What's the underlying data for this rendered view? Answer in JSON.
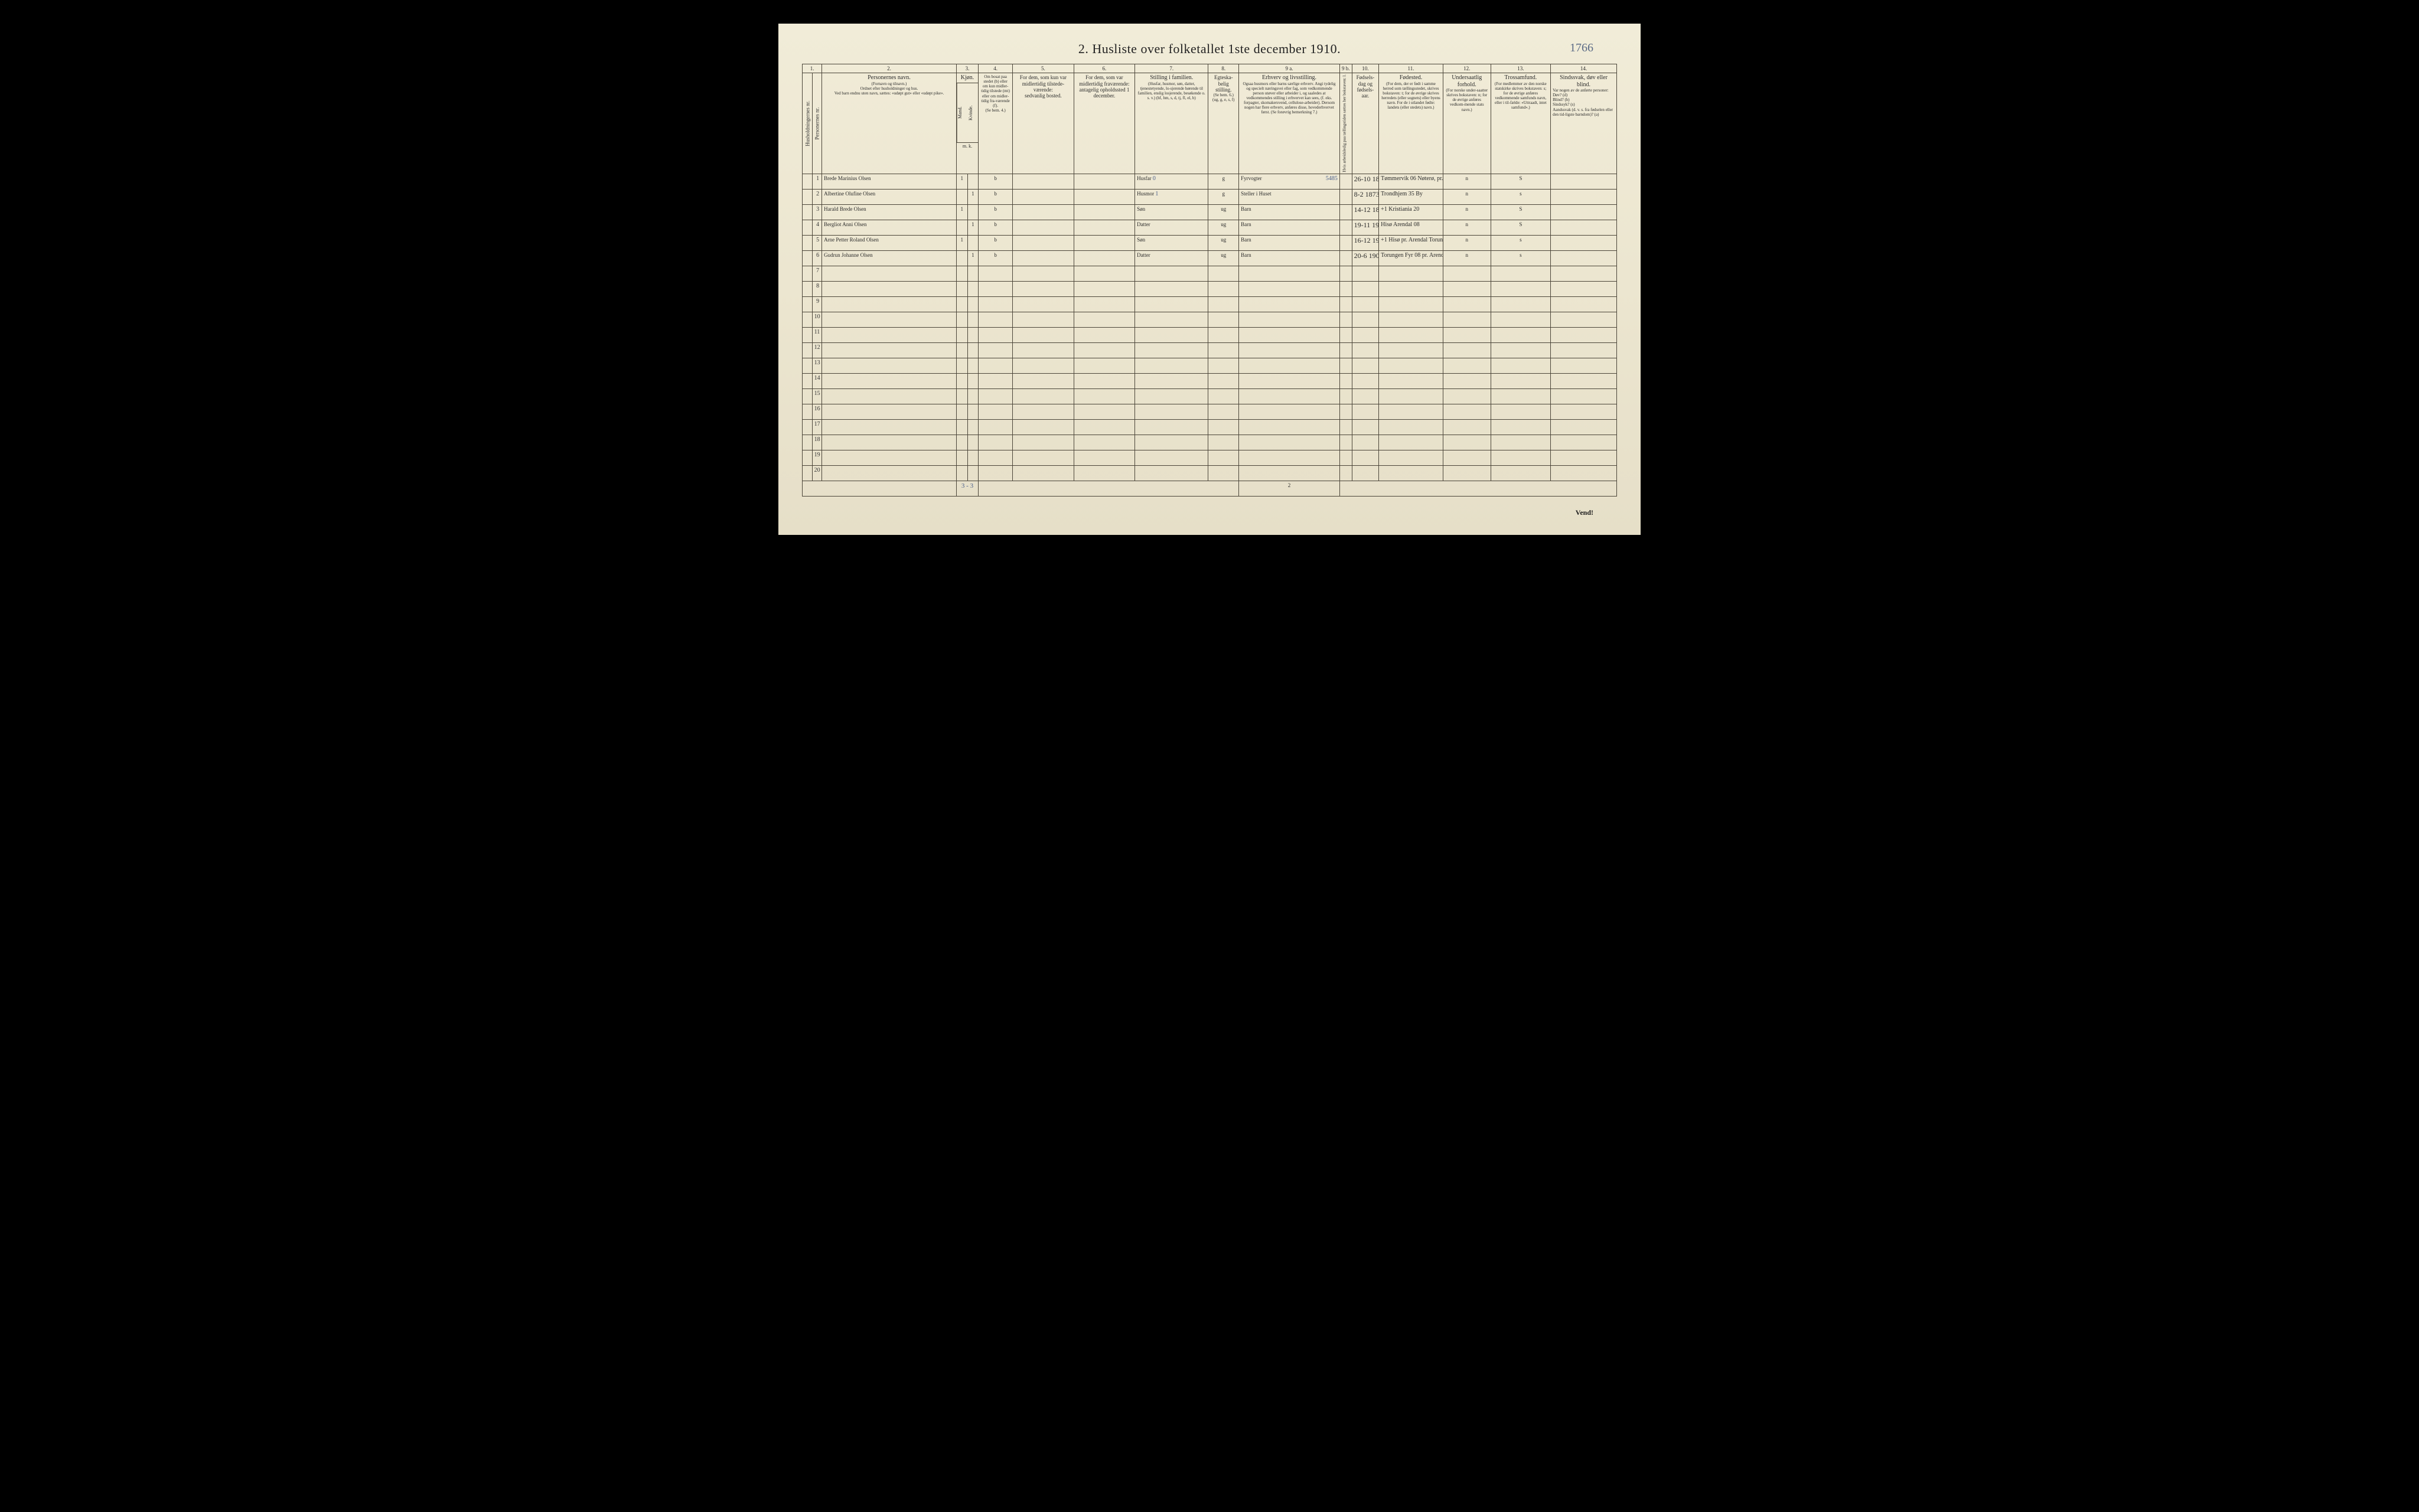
{
  "title": "2.  Husliste over folketallet 1ste december 1910.",
  "corner_note": "1766",
  "page_number_bottom": "2",
  "vend": "Vend!",
  "footer_tally": "3 - 3",
  "col_numbers": [
    "1.",
    "2.",
    "3.",
    "4.",
    "5.",
    "6.",
    "7.",
    "8.",
    "9 a.",
    "9 b.",
    "10.",
    "11.",
    "12.",
    "13.",
    "14."
  ],
  "headers": {
    "c1": "Husholdningernes nr.",
    "c2": "Personernes nr.",
    "c3_title": "Personernes navn.",
    "c3_sub": "(Fornavn og tilnavn.)\nOrdnet efter husholdninger og hus.\nVed barn endnu uten navn, sættes: «udøpt gut» eller «udøpt pike».",
    "c4_5_title": "Kjøn.",
    "c4": "Mand.",
    "c5": "Kvinde.",
    "c4_5_sub": "m. k.",
    "c6_title": "Om bosat paa stedet (b) eller om kun midler-tidig tilstede (mt) eller om midler-tidig fra-værende (f).",
    "c6_sub": "(Se bem. 4.)",
    "c7": "For dem, som kun var midlertidig tilstede-værende:\nsedvanlig bosted.",
    "c8": "For dem, som var midlertidig fraværende:\nantagelig opholdssted 1 december.",
    "c9_title": "Stilling i familien.",
    "c9_sub": "(Husfar, husmor, søn, datter, tjenestetyende, lo-sjerende hørende til familien, enslig losjerende, besøkende o. s. v.)\n(hf, hm, s, d, tj, fl, el, b)",
    "c10_title": "Egteska-belig stilling.",
    "c10_sub": "(Se bem. 6.)\n(ug, g, e, s, f)",
    "c11_title": "Erhverv og livsstilling.",
    "c11_sub": "Ogsaa husmors eller barns særlige erhverv. Angi tydelig og specielt næringsvei eller fag, som vedkommende person utøver eller arbeider i, og saaledes at vedkommendes stilling i erhvervet kan sees, (f. eks. forpagter, skomakersvend, cellulose-arbeider). Dersom nogen har flere erhverv, anføres disse, hovederhvervet først.\n(Se forøvrig bemerkning 7.)",
    "c12": "Hvis arbeidsledig paa tællingstiden sættes her bokstaven: l.",
    "c13_title": "Fødsels-dag og fødsels-aar.",
    "c14_title": "Fødested.",
    "c14_sub": "(For dem, der er født i samme herred som tællingsstedet, skrives bokstaven: t; for de øvrige skrives herredets (eller sognets) eller byens navn.\nFor de i utlandet fødte: landets (eller stedets) navn.)",
    "c15_title": "Undersaatlig forhold.",
    "c15_sub": "(For norske under-saatter skrives bokstaven: n; for de øvrige anføres vedkom-mende stats navn.)",
    "c16_title": "Trossamfund.",
    "c16_sub": "(For medlemmer av den norske statskirke skrives bokstaven: s; for de øvrige anføres vedkommende samfunds navn, eller i til-fælde: «Uttraadt, intet samfund».)",
    "c17_title": "Sindssvak, døv eller blind.",
    "c17_sub": "Var nogen av de anførte personer:\nDøv?        (d)\nBlind?      (b)\nSindssyk?  (s)\nAandssvak (d. v. s. fra fødselen eller den tid-ligste barndom)?  (a)"
  },
  "rows": [
    {
      "num": "1",
      "name": "Brede Marinius Olsen",
      "m": "1",
      "k": "",
      "bosat": "b",
      "midl_til": "",
      "midl_fra": "",
      "famstill": "Husfar",
      "o": "0",
      "egte": "g",
      "erhverv": "Fyrvogter",
      "erhverv_over": "5485",
      "led": "",
      "fdato": "26-10 1870",
      "fsted": "Tømmervik 06 Nøterø, pr. Tønsberg",
      "nat": "n",
      "tro": "S",
      "sind": ""
    },
    {
      "num": "2",
      "name": "Albertine Olufine Olsen",
      "m": "",
      "k": "1",
      "bosat": "b",
      "midl_til": "",
      "midl_fra": "",
      "famstill": "Husmor",
      "o": "1",
      "egte": "g",
      "erhverv": "Steller i Huset",
      "erhverv_over": "",
      "led": "",
      "fdato": "8-2 1873",
      "fsted": "Trondhjem 35 By",
      "nat": "n",
      "tro": "s",
      "sind": ""
    },
    {
      "num": "3",
      "name": "Harald Brede Olsen",
      "m": "1",
      "k": "",
      "bosat": "b",
      "midl_til": "",
      "midl_fra": "",
      "famstill": "Søn",
      "o": "",
      "egte": "ug",
      "erhverv": "Barn",
      "erhverv_over": "",
      "led": "",
      "fdato": "14-12 1898",
      "fsted": "+1 Kristiania 20",
      "nat": "n",
      "tro": "S",
      "sind": ""
    },
    {
      "num": "4",
      "name": "Bergliot Anni Olsen",
      "m": "",
      "k": "1",
      "bosat": "b",
      "midl_til": "",
      "midl_fra": "",
      "famstill": "Datter",
      "o": "",
      "egte": "ug",
      "erhverv": "Barn",
      "erhverv_over": "",
      "led": "",
      "fdato": "19-11 1904",
      "fsted": "Hisø Arendal 08",
      "nat": "n",
      "tro": "S",
      "sind": ""
    },
    {
      "num": "5",
      "name": "Arne Petter Roland Olsen",
      "m": "1",
      "k": "",
      "bosat": "b",
      "midl_til": "",
      "midl_fra": "",
      "famstill": "Søn",
      "o": "",
      "egte": "ug",
      "erhverv": "Barn",
      "erhverv_over": "",
      "led": "",
      "fdato": "16-12 1906",
      "fsted": "+1 Hisø pr. Arendal Torungen Fyr 08",
      "nat": "n",
      "tro": "s",
      "sind": ""
    },
    {
      "num": "6",
      "name": "Gudrun Johanne Olsen",
      "m": "",
      "k": "1",
      "bosat": "b",
      "midl_til": "",
      "midl_fra": "",
      "famstill": "Datter",
      "o": "",
      "egte": "ug",
      "erhverv": "Barn",
      "erhverv_over": "",
      "led": "",
      "fdato": "20-6 1909",
      "fsted": "Torungen Fyr 08 pr. Arendal",
      "nat": "n",
      "tro": "s",
      "sind": ""
    }
  ],
  "empty_rows": [
    7,
    8,
    9,
    10,
    11,
    12,
    13,
    14,
    15,
    16,
    17,
    18,
    19,
    20
  ],
  "colors": {
    "paper": "#ece6d0",
    "ink": "#2a2518",
    "rule": "#4a4438",
    "blue": "#4a5e8a"
  }
}
